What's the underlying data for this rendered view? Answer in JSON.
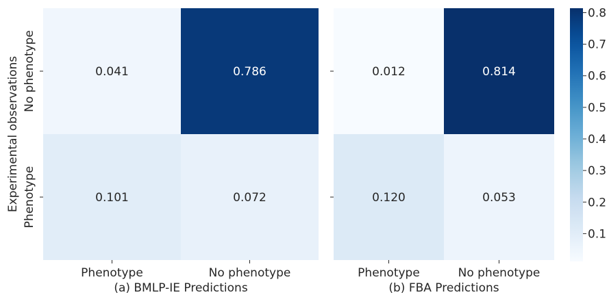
{
  "chart_data": [
    {
      "type": "heatmap",
      "title": "",
      "xlabel": "(a) BMLP-IE Predictions",
      "ylabel": "Experimental observations",
      "x_categories": [
        "Phenotype",
        "No phenotype"
      ],
      "y_categories": [
        "No phenotype",
        "Phenotype"
      ],
      "values": [
        [
          0.041,
          0.786
        ],
        [
          0.101,
          0.072
        ]
      ],
      "value_labels": [
        [
          "0.041",
          "0.786"
        ],
        [
          "0.101",
          "0.072"
        ]
      ]
    },
    {
      "type": "heatmap",
      "title": "",
      "xlabel": "(b) FBA Predictions",
      "ylabel": "",
      "x_categories": [
        "Phenotype",
        "No phenotype"
      ],
      "y_categories": [
        "No phenotype",
        "Phenotype"
      ],
      "values": [
        [
          0.012,
          0.814
        ],
        [
          0.12,
          0.053
        ]
      ],
      "value_labels": [
        [
          "0.012",
          "0.814"
        ],
        [
          "0.120",
          "0.053"
        ]
      ]
    }
  ],
  "colorbar": {
    "colormap": "Blues",
    "vmin": 0.012,
    "vmax": 0.814,
    "ticks": [
      0.1,
      0.2,
      0.3,
      0.4,
      0.5,
      0.6,
      0.7,
      0.8
    ],
    "tick_labels": [
      "0.1",
      "0.2",
      "0.3",
      "0.4",
      "0.5",
      "0.6",
      "0.7",
      "0.8"
    ]
  },
  "colors": {
    "low": "#f7fbff",
    "high": "#08306b",
    "text_dark": "#262626",
    "text_light": "#ffffff"
  }
}
